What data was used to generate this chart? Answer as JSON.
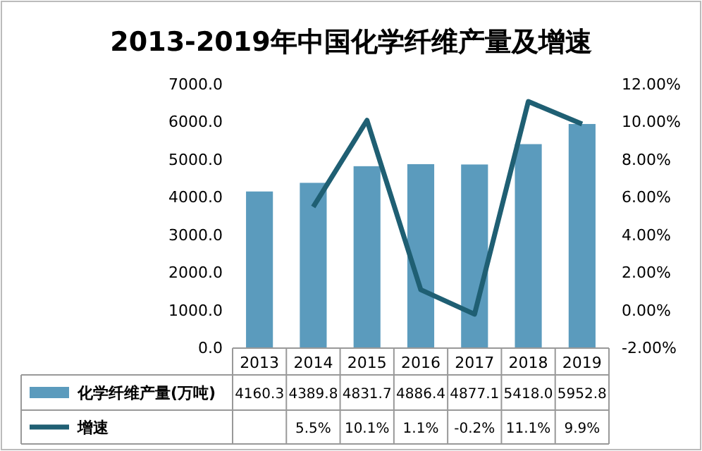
{
  "chart_data": {
    "type": "bar",
    "title": "2013-2019年中国化学纤维产量及增速",
    "categories": [
      "2013",
      "2014",
      "2015",
      "2016",
      "2017",
      "2018",
      "2019"
    ],
    "series": [
      {
        "name": "化学纤维产量(万吨)",
        "color": "#5b9bbd",
        "values": [
          4160.3,
          4389.8,
          4831.7,
          4886.4,
          4877.1,
          5418.0,
          5952.8
        ],
        "value_labels": [
          "4160.3",
          "4389.8",
          "4831.7",
          "4886.4",
          "4877.1",
          "5418.0",
          "5952.8"
        ]
      },
      {
        "name": "增速",
        "type": "line",
        "axis": "y2",
        "color": "#1f5f73",
        "values": [
          null,
          5.5,
          10.1,
          1.1,
          -0.2,
          11.1,
          9.9
        ],
        "value_labels": [
          null,
          "5.5%",
          "10.1%",
          "1.1%",
          "-0.2%",
          "11.1%",
          "9.9%"
        ]
      }
    ],
    "ylim": [
      0,
      7000
    ],
    "yticks": [
      {
        "value": 0,
        "label": "0.0"
      },
      {
        "value": 1000,
        "label": "1000.0"
      },
      {
        "value": 2000,
        "label": "2000.0"
      },
      {
        "value": 3000,
        "label": "3000.0"
      },
      {
        "value": 4000,
        "label": "4000.0"
      },
      {
        "value": 5000,
        "label": "5000.0"
      },
      {
        "value": 6000,
        "label": "6000.0"
      },
      {
        "value": 7000,
        "label": "7000.0"
      }
    ],
    "y2lim": [
      -2,
      12
    ],
    "y2ticks": [
      {
        "value": -2,
        "label": "-2.00%"
      },
      {
        "value": 0,
        "label": "0.00%"
      },
      {
        "value": 2,
        "label": "2.00%"
      },
      {
        "value": 4,
        "label": "4.00%"
      },
      {
        "value": 6,
        "label": "6.00%"
      },
      {
        "value": 8,
        "label": "8.00%"
      },
      {
        "value": 10,
        "label": "10.00%"
      },
      {
        "value": 12,
        "label": "12.00%"
      }
    ],
    "grid": false,
    "legend": "bottom",
    "marker": "none",
    "line_style": "solid"
  }
}
